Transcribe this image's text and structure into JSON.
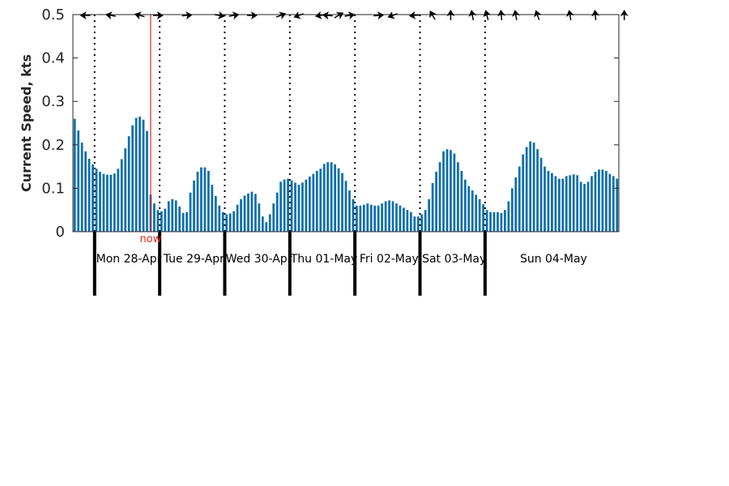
{
  "chart_data": {
    "type": "bar",
    "title": "",
    "ylabel": "Current Speed, kts",
    "xlabel": "",
    "ylim": [
      0,
      0.5
    ],
    "yticks": [
      "0",
      "0.1",
      "0.2",
      "0.3",
      "0.4",
      "0.5"
    ],
    "grid": "vertical dotted lines at day boundaries",
    "bar_color": "#0e6faa",
    "now_color": "#e8231b",
    "now_label": "now",
    "now_index": 21,
    "days": [
      {
        "label": "Mon 28-Apr",
        "start_index": 6
      },
      {
        "label": "Tue 29-Apr",
        "start_index": 24
      },
      {
        "label": "Wed 30-Apr",
        "start_index": 42
      },
      {
        "label": "Thu 01-May",
        "start_index": 60
      },
      {
        "label": "Fri 02-May",
        "start_index": 78
      },
      {
        "label": "Sat 03-May",
        "start_index": 96
      },
      {
        "label": "Sun 04-May",
        "start_index": 114
      }
    ],
    "interval_hours": 1.333,
    "values": [
      0.26,
      0.233,
      0.205,
      0.185,
      0.168,
      0.155,
      0.145,
      0.138,
      0.133,
      0.131,
      0.131,
      0.134,
      0.145,
      0.167,
      0.192,
      0.22,
      0.245,
      0.262,
      0.265,
      0.258,
      0.232,
      0.085,
      0.065,
      0.05,
      0.047,
      0.053,
      0.07,
      0.075,
      0.072,
      0.058,
      0.043,
      0.045,
      0.09,
      0.118,
      0.138,
      0.148,
      0.148,
      0.14,
      0.108,
      0.082,
      0.06,
      0.045,
      0.04,
      0.042,
      0.047,
      0.062,
      0.075,
      0.083,
      0.088,
      0.092,
      0.087,
      0.065,
      0.035,
      0.022,
      0.04,
      0.065,
      0.09,
      0.115,
      0.12,
      0.122,
      0.118,
      0.113,
      0.108,
      0.113,
      0.12,
      0.127,
      0.133,
      0.14,
      0.145,
      0.156,
      0.16,
      0.16,
      0.155,
      0.146,
      0.135,
      0.117,
      0.095,
      0.075,
      0.06,
      0.06,
      0.062,
      0.065,
      0.062,
      0.06,
      0.06,
      0.065,
      0.07,
      0.072,
      0.07,
      0.065,
      0.06,
      0.055,
      0.05,
      0.045,
      0.035,
      0.035,
      0.04,
      0.05,
      0.075,
      0.112,
      0.138,
      0.16,
      0.185,
      0.19,
      0.188,
      0.18,
      0.16,
      0.14,
      0.12,
      0.105,
      0.095,
      0.085,
      0.075,
      0.063,
      0.05,
      0.045,
      0.045,
      0.045,
      0.043,
      0.05,
      0.07,
      0.1,
      0.125,
      0.15,
      0.178,
      0.195,
      0.208,
      0.205,
      0.19,
      0.17,
      0.15,
      0.14,
      0.135,
      0.128,
      0.122,
      0.122,
      0.128,
      0.13,
      0.132,
      0.13,
      0.115,
      0.11,
      0.115,
      0.128,
      0.138,
      0.143,
      0.143,
      0.14,
      0.133,
      0.128,
      0.122
    ],
    "direction_arrows": [
      {
        "index": 3,
        "deg": 180
      },
      {
        "index": 10,
        "deg": 170
      },
      {
        "index": 18,
        "deg": 165
      },
      {
        "index": 23,
        "deg": 0
      },
      {
        "index": 31,
        "deg": 5
      },
      {
        "index": 40,
        "deg": -10
      },
      {
        "index": 44,
        "deg": 10
      },
      {
        "index": 49,
        "deg": 0
      },
      {
        "index": 57,
        "deg": 20
      },
      {
        "index": 62,
        "deg": 200
      },
      {
        "index": 68,
        "deg": 190
      },
      {
        "index": 70,
        "deg": 175
      },
      {
        "index": 73,
        "deg": 30
      },
      {
        "index": 76,
        "deg": 10
      },
      {
        "index": 84,
        "deg": 5
      },
      {
        "index": 88,
        "deg": 200
      },
      {
        "index": 94,
        "deg": 185
      },
      {
        "index": 99,
        "deg": 120
      },
      {
        "index": 104,
        "deg": 90
      },
      {
        "index": 110,
        "deg": 100
      },
      {
        "index": 114,
        "deg": 105
      },
      {
        "index": 118,
        "deg": 95
      },
      {
        "index": 122,
        "deg": 100
      },
      {
        "index": 128,
        "deg": 110
      },
      {
        "index": 137,
        "deg": 100
      },
      {
        "index": 144,
        "deg": 95
      },
      {
        "index": 152,
        "deg": 90
      }
    ]
  }
}
